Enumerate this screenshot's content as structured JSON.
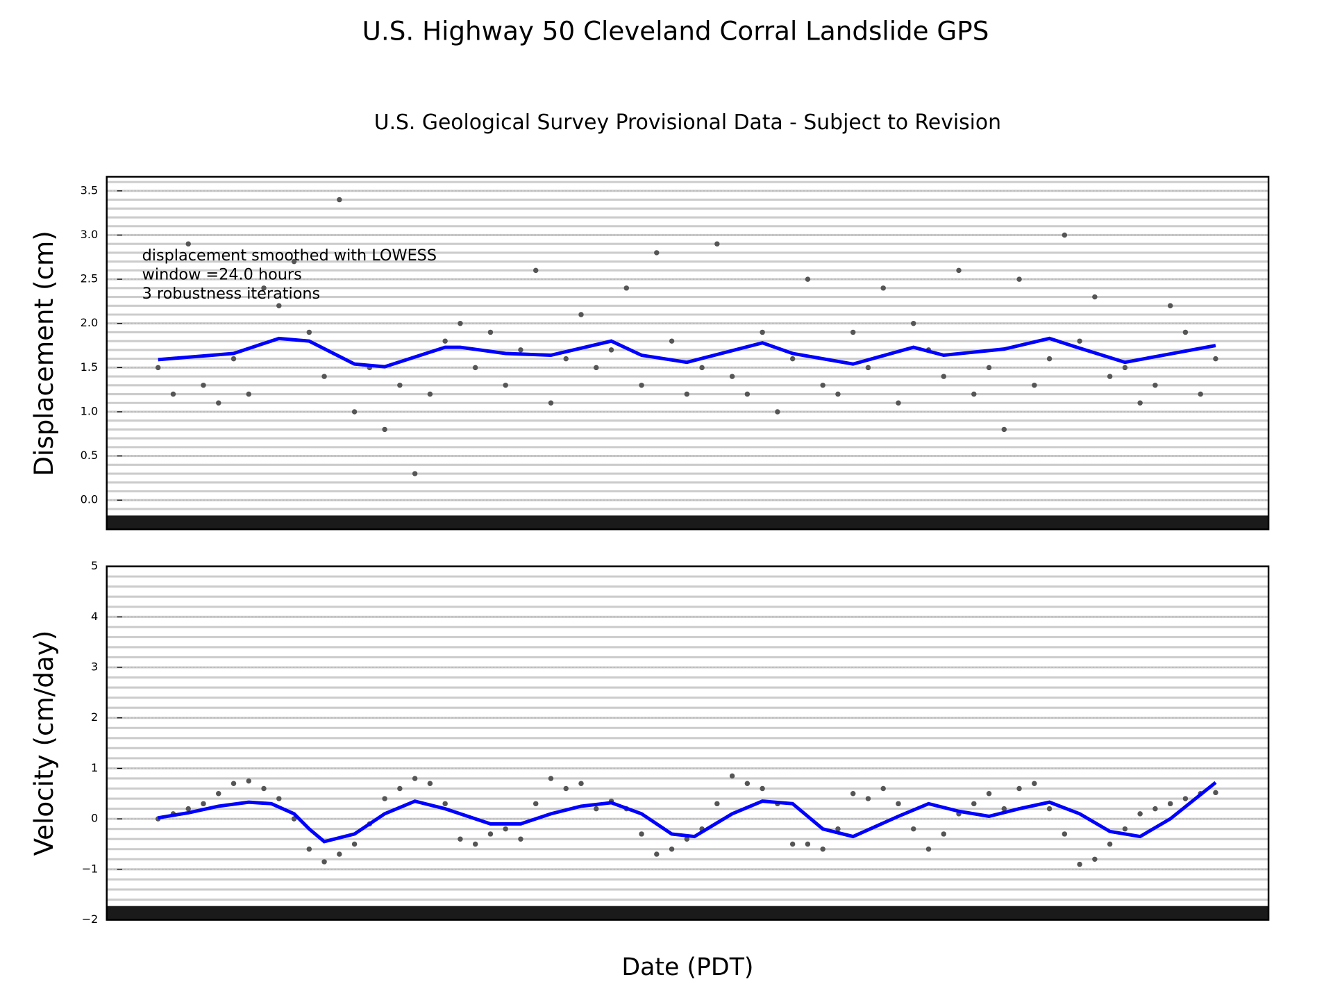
{
  "chart_data": [
    {
      "type": "scatter",
      "title": "U.S. Highway 50 Cleveland Corral Landslide GPS",
      "subtitle": "U.S. Geological Survey Provisional Data - Subject to Revision",
      "ylabel": "Displacement (cm)",
      "annotation": [
        "displacement smoothed with LOWESS",
        "window =24.0 hours",
        "3 robustness iterations"
      ],
      "xlim": [
        -0.34,
        7.35
      ],
      "ylim": [
        -0.33,
        3.66
      ],
      "yticks": [
        0,
        0.5,
        1,
        1.5,
        2,
        2.5,
        3,
        3.5
      ],
      "ytick_labels": [
        "0.0",
        "0.5",
        "1.0",
        "1.5",
        "2.0",
        "2.5",
        "3.0",
        "3.5"
      ],
      "grid": true,
      "series": [
        {
          "type": "scatter",
          "color": "#555555",
          "x": [
            0,
            0.1,
            0.2,
            0.3,
            0.4,
            0.5,
            0.6,
            0.7,
            0.8,
            0.9,
            1,
            1.1,
            1.2,
            1.3,
            1.4,
            1.5,
            1.6,
            1.7,
            1.8,
            1.9,
            2,
            2.1,
            2.2,
            2.3,
            2.4,
            2.5,
            2.6,
            2.7,
            2.8,
            2.9,
            3,
            3.1,
            3.2,
            3.3,
            3.4,
            3.5,
            3.6,
            3.7,
            3.8,
            3.9,
            4,
            4.1,
            4.2,
            4.3,
            4.4,
            4.5,
            4.6,
            4.7,
            4.8,
            4.9,
            5,
            5.1,
            5.2,
            5.3,
            5.4,
            5.5,
            5.6,
            5.7,
            5.8,
            5.9,
            6,
            6.1,
            6.2,
            6.3,
            6.4,
            6.5,
            6.6,
            6.7,
            6.8,
            6.9,
            7
          ],
          "values": [
            1.5,
            1.2,
            2.9,
            1.3,
            1.1,
            1.6,
            1.2,
            2.4,
            2.2,
            2.7,
            1.9,
            1.4,
            3.4,
            1.0,
            1.5,
            0.8,
            1.3,
            0.3,
            1.2,
            1.8,
            2.0,
            1.5,
            1.9,
            1.3,
            1.7,
            2.6,
            1.1,
            1.6,
            2.1,
            1.5,
            1.7,
            2.4,
            1.3,
            2.8,
            1.8,
            1.2,
            1.5,
            2.9,
            1.4,
            1.2,
            1.9,
            1.0,
            1.6,
            2.5,
            1.3,
            1.2,
            1.9,
            1.5,
            2.4,
            1.1,
            2.0,
            1.7,
            1.4,
            2.6,
            1.2,
            1.5,
            0.8,
            2.5,
            1.3,
            1.6,
            3.0,
            1.8,
            2.3,
            1.4,
            1.5,
            1.1,
            1.3,
            2.2,
            1.9,
            1.2,
            1.6
          ]
        },
        {
          "type": "line",
          "color": "#0000ff",
          "x": [
            0,
            0.5,
            0.8,
            1.0,
            1.3,
            1.5,
            1.9,
            2.0,
            2.3,
            2.6,
            3.0,
            3.2,
            3.5,
            4.0,
            4.2,
            4.6,
            5.0,
            5.2,
            5.6,
            5.9,
            6.1,
            6.4,
            7.0
          ],
          "values": [
            1.59,
            1.66,
            1.83,
            1.8,
            1.54,
            1.51,
            1.73,
            1.73,
            1.66,
            1.64,
            1.8,
            1.64,
            1.56,
            1.78,
            1.66,
            1.54,
            1.73,
            1.64,
            1.71,
            1.83,
            1.72,
            1.56,
            1.75
          ]
        }
      ]
    },
    {
      "type": "scatter",
      "ylabel": "Velocity (cm/day)",
      "xlabel": "Date (PDT)",
      "xlim": [
        -0.34,
        7.35
      ],
      "ylim": [
        -2,
        5
      ],
      "yticks": [
        -2,
        -1,
        0,
        1,
        2,
        3,
        4,
        5
      ],
      "ytick_labels": [
        "−2",
        "−1",
        "0",
        "1",
        "2",
        "3",
        "4",
        "5"
      ],
      "grid": true,
      "series": [
        {
          "type": "scatter",
          "color": "#555555",
          "x": [
            0,
            0.1,
            0.2,
            0.3,
            0.4,
            0.5,
            0.6,
            0.7,
            0.8,
            0.9,
            1,
            1.1,
            1.2,
            1.3,
            1.4,
            1.5,
            1.6,
            1.7,
            1.8,
            1.9,
            2,
            2.1,
            2.2,
            2.3,
            2.4,
            2.5,
            2.6,
            2.7,
            2.8,
            2.9,
            3,
            3.1,
            3.2,
            3.3,
            3.4,
            3.5,
            3.6,
            3.7,
            3.8,
            3.9,
            4,
            4.1,
            4.2,
            4.3,
            4.4,
            4.5,
            4.6,
            4.7,
            4.8,
            4.9,
            5,
            5.1,
            5.2,
            5.3,
            5.4,
            5.5,
            5.6,
            5.7,
            5.8,
            5.9,
            6,
            6.1,
            6.2,
            6.3,
            6.4,
            6.5,
            6.6,
            6.7,
            6.8,
            6.9,
            7
          ],
          "values": [
            0.0,
            0.1,
            0.2,
            0.3,
            0.5,
            0.7,
            0.75,
            0.6,
            0.4,
            0.0,
            -0.6,
            -0.85,
            -0.7,
            -0.5,
            -0.1,
            0.4,
            0.6,
            0.8,
            0.7,
            0.3,
            -0.4,
            -0.5,
            -0.3,
            -0.2,
            -0.4,
            0.3,
            0.8,
            0.6,
            0.7,
            0.2,
            0.35,
            0.2,
            -0.3,
            -0.7,
            -0.6,
            -0.4,
            -0.2,
            0.3,
            0.85,
            0.7,
            0.6,
            0.3,
            -0.5,
            -0.5,
            -0.6,
            -0.2,
            0.5,
            0.4,
            0.6,
            0.3,
            -0.2,
            -0.6,
            -0.3,
            0.1,
            0.3,
            0.5,
            0.2,
            0.6,
            0.7,
            0.2,
            -0.3,
            -0.9,
            -0.8,
            -0.5,
            -0.2,
            0.1,
            0.2,
            0.3,
            0.4,
            0.5,
            0.52
          ]
        },
        {
          "type": "line",
          "color": "#0000ff",
          "x": [
            0,
            0.2,
            0.4,
            0.6,
            0.75,
            0.9,
            1.0,
            1.1,
            1.3,
            1.5,
            1.7,
            1.9,
            2.0,
            2.2,
            2.4,
            2.6,
            2.8,
            3.0,
            3.2,
            3.4,
            3.55,
            3.8,
            4.0,
            4.2,
            4.4,
            4.6,
            4.9,
            5.1,
            5.3,
            5.5,
            5.7,
            5.9,
            6.1,
            6.3,
            6.5,
            6.7,
            7.0
          ],
          "values": [
            0.02,
            0.12,
            0.25,
            0.33,
            0.3,
            0.1,
            -0.2,
            -0.45,
            -0.3,
            0.1,
            0.35,
            0.2,
            0.1,
            -0.1,
            -0.1,
            0.1,
            0.25,
            0.32,
            0.1,
            -0.3,
            -0.35,
            0.1,
            0.35,
            0.3,
            -0.2,
            -0.35,
            0.05,
            0.3,
            0.15,
            0.05,
            0.2,
            0.33,
            0.1,
            -0.25,
            -0.35,
            0.0,
            0.72
          ]
        }
      ]
    }
  ]
}
